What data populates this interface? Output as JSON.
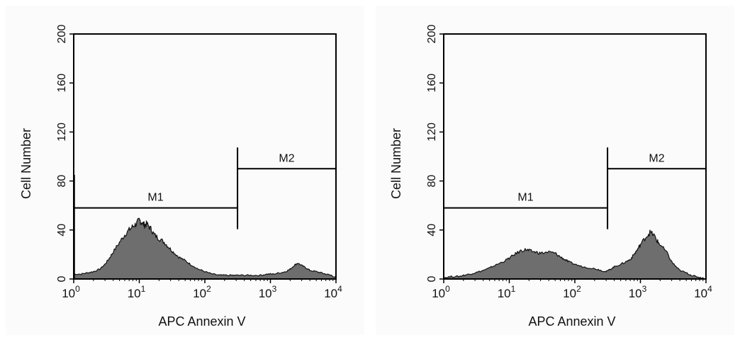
{
  "colors": {
    "fill": "#6e6e6e",
    "outline": "#111111",
    "frame": "#000000"
  },
  "chart_data": [
    {
      "type": "area",
      "xscale": "log",
      "xlim": [
        1,
        10000
      ],
      "ylim": [
        0,
        200
      ],
      "xlabel": "APC Annexin V",
      "ylabel": "Cell Number",
      "xticks": [
        {
          "base": "10",
          "exp": "0"
        },
        {
          "base": "10",
          "exp": "1"
        },
        {
          "base": "10",
          "exp": "2"
        },
        {
          "base": "10",
          "exp": "3"
        },
        {
          "base": "10",
          "exp": "4"
        }
      ],
      "yticks": [
        "0",
        "40",
        "80",
        "120",
        "160",
        "200"
      ],
      "grid": false,
      "markers": [
        {
          "label": "M1",
          "from": 1,
          "to": 315,
          "y": 58
        },
        {
          "label": "M2",
          "from": 315,
          "to": 10000,
          "y": 90
        }
      ],
      "spike": {
        "x": 1.02,
        "y": 85
      },
      "curve": {
        "x": [
          1,
          1.3,
          1.6,
          2,
          2.5,
          3,
          3.5,
          4,
          5,
          6,
          7,
          8,
          9,
          10,
          11,
          12,
          13,
          15,
          17,
          20,
          24,
          28,
          33,
          40,
          50,
          60,
          80,
          100,
          130,
          170,
          220,
          300,
          400,
          500,
          700,
          900,
          1100,
          1400,
          1700,
          2000,
          2300,
          2600,
          3000,
          3500,
          4000,
          5000,
          6000,
          7000,
          8500,
          10000
        ],
        "y": [
          4,
          4,
          5,
          6,
          8,
          12,
          17,
          22,
          30,
          36,
          40,
          43,
          45,
          48,
          46,
          44,
          45,
          41,
          36,
          33,
          30,
          26,
          22,
          18,
          15,
          12,
          8,
          6,
          4,
          3,
          3,
          3,
          3,
          3,
          3,
          4,
          4,
          5,
          6,
          8,
          11,
          13,
          11,
          9,
          7,
          6,
          5,
          4,
          3,
          1
        ]
      }
    },
    {
      "type": "area",
      "xscale": "log",
      "xlim": [
        1,
        10000
      ],
      "ylim": [
        0,
        200
      ],
      "xlabel": "APC Annexin V",
      "ylabel": "Cell Number",
      "xticks": [
        {
          "base": "10",
          "exp": "0"
        },
        {
          "base": "10",
          "exp": "1"
        },
        {
          "base": "10",
          "exp": "2"
        },
        {
          "base": "10",
          "exp": "3"
        },
        {
          "base": "10",
          "exp": "4"
        }
      ],
      "yticks": [
        "0",
        "40",
        "80",
        "120",
        "160",
        "200"
      ],
      "grid": false,
      "markers": [
        {
          "label": "M1",
          "from": 1,
          "to": 315,
          "y": 58
        },
        {
          "label": "M2",
          "from": 315,
          "to": 10000,
          "y": 90
        }
      ],
      "curve": {
        "x": [
          1,
          1.3,
          1.7,
          2,
          2.5,
          3,
          4,
          5,
          6,
          8,
          10,
          12,
          15,
          18,
          20,
          25,
          30,
          40,
          50,
          60,
          70,
          80,
          100,
          130,
          170,
          220,
          250,
          300,
          350,
          400,
          500,
          600,
          700,
          800,
          900,
          1000,
          1200,
          1400,
          1600,
          1800,
          2000,
          2500,
          3000,
          3500,
          4000,
          5000,
          6000,
          7000,
          8500,
          10000
        ],
        "y": [
          1,
          2,
          2,
          3,
          4,
          5,
          7,
          9,
          11,
          14,
          17,
          20,
          23,
          24,
          23,
          22,
          21,
          22,
          21,
          18,
          16,
          14,
          12,
          10,
          9,
          8,
          7,
          6,
          8,
          10,
          12,
          14,
          16,
          20,
          24,
          28,
          34,
          38,
          36,
          31,
          28,
          22,
          14,
          10,
          7,
          5,
          3,
          2,
          1,
          0
        ]
      }
    }
  ]
}
